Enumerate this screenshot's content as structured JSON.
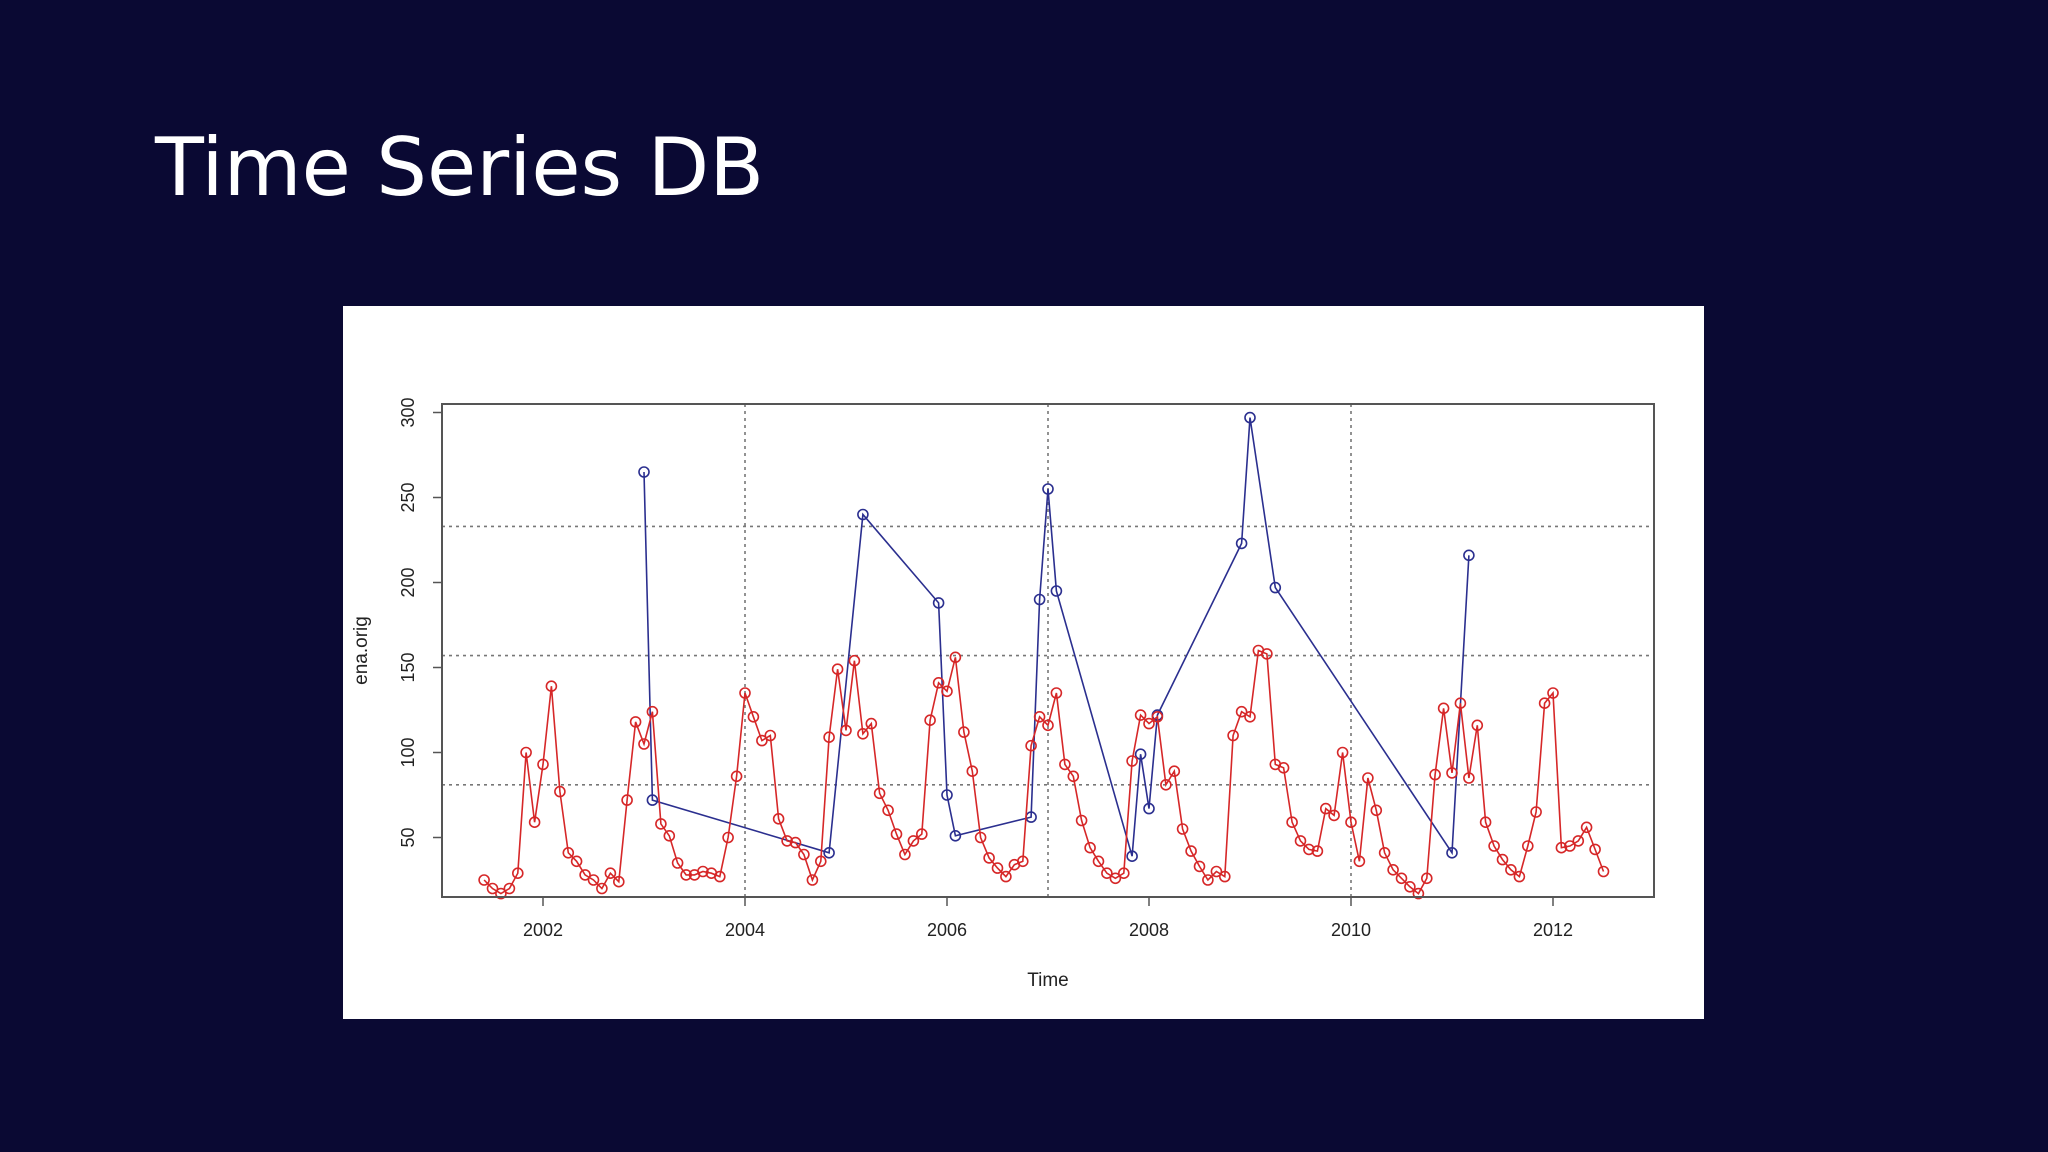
{
  "slide": {
    "title": "Time Series DB"
  },
  "chart_data": {
    "type": "line",
    "xlabel": "Time",
    "ylabel": "ena.orig",
    "xlim": [
      2001.0,
      2013.0
    ],
    "ylim": [
      15,
      305
    ],
    "xticks": [
      2002,
      2004,
      2006,
      2008,
      2010,
      2012
    ],
    "yticks": [
      50,
      100,
      150,
      200,
      250,
      300
    ],
    "vgrid": [
      2004,
      2007,
      2010
    ],
    "hgrid": [
      81,
      157,
      233
    ],
    "grid": "dotted",
    "colors": {
      "series_a": "#2b2f8f",
      "series_b": "#d62728"
    },
    "series": [
      {
        "color": "#2b2f8f",
        "x": [
          2003.0,
          2003.083,
          2004.833,
          2005.167,
          2005.917,
          2006.0,
          2006.083,
          2006.833,
          2006.917,
          2007.0,
          2007.083,
          2007.833,
          2007.917,
          2008.0,
          2008.083,
          2008.917,
          2009.0,
          2009.25,
          2011.0,
          2011.167
        ],
        "y": [
          265,
          72,
          41,
          240,
          188,
          75,
          51,
          62,
          190,
          255,
          195,
          39,
          99,
          67,
          122,
          223,
          297,
          197,
          41,
          216
        ]
      },
      {
        "color": "#d62728",
        "x": [
          2001.417,
          2001.5,
          2001.583,
          2001.667,
          2001.75,
          2001.833,
          2001.917,
          2002.0,
          2002.083,
          2002.167,
          2002.25,
          2002.333,
          2002.417,
          2002.5,
          2002.583,
          2002.667,
          2002.75,
          2002.833,
          2002.917,
          2003.0,
          2003.083,
          2003.167,
          2003.25,
          2003.333,
          2003.417,
          2003.5,
          2003.583,
          2003.667,
          2003.75,
          2003.833,
          2003.917,
          2004.0,
          2004.083,
          2004.167,
          2004.25,
          2004.333,
          2004.417,
          2004.5,
          2004.583,
          2004.667,
          2004.75,
          2004.833,
          2004.917,
          2005.0,
          2005.083,
          2005.167,
          2005.25,
          2005.333,
          2005.417,
          2005.5,
          2005.583,
          2005.667,
          2005.75,
          2005.833,
          2005.917,
          2006.0,
          2006.083,
          2006.167,
          2006.25,
          2006.333,
          2006.417,
          2006.5,
          2006.583,
          2006.667,
          2006.75,
          2006.833,
          2006.917,
          2007.0,
          2007.083,
          2007.167,
          2007.25,
          2007.333,
          2007.417,
          2007.5,
          2007.583,
          2007.667,
          2007.75,
          2007.833,
          2007.917,
          2008.0,
          2008.083,
          2008.167,
          2008.25,
          2008.333,
          2008.417,
          2008.5,
          2008.583,
          2008.667,
          2008.75,
          2008.833,
          2008.917,
          2009.0,
          2009.083,
          2009.167,
          2009.25,
          2009.333,
          2009.417,
          2009.5,
          2009.583,
          2009.667,
          2009.75,
          2009.833,
          2009.917,
          2010.0,
          2010.083,
          2010.167,
          2010.25,
          2010.333,
          2010.417,
          2010.5,
          2010.583,
          2010.667,
          2010.75,
          2010.833,
          2010.917,
          2011.0,
          2011.083,
          2011.167,
          2011.25,
          2011.333,
          2011.417,
          2011.5,
          2011.583,
          2011.667,
          2011.75,
          2011.833,
          2011.917,
          2012.0,
          2012.083,
          2012.167,
          2012.25,
          2012.333,
          2012.417,
          2012.5
        ],
        "y": [
          25,
          20,
          17,
          20,
          29,
          100,
          59,
          93,
          139,
          77,
          41,
          36,
          28,
          25,
          20,
          29,
          24,
          72,
          118,
          105,
          124,
          58,
          51,
          35,
          28,
          28,
          30,
          29,
          27,
          50,
          86,
          135,
          121,
          107,
          110,
          61,
          48,
          47,
          40,
          25,
          36,
          109,
          149,
          113,
          154,
          111,
          117,
          76,
          66,
          52,
          40,
          48,
          52,
          119,
          141,
          136,
          156,
          112,
          89,
          50,
          38,
          32,
          27,
          34,
          36,
          104,
          121,
          116,
          135,
          93,
          86,
          60,
          44,
          36,
          29,
          26,
          29,
          95,
          122,
          117,
          121,
          81,
          89,
          55,
          42,
          33,
          25,
          30,
          27,
          110,
          124,
          121,
          160,
          158,
          93,
          91,
          59,
          48,
          43,
          42,
          67,
          63,
          100,
          59,
          36,
          85,
          66,
          41,
          31,
          26,
          21,
          17,
          26,
          87,
          126,
          88,
          129,
          85,
          116,
          59,
          45,
          37,
          31,
          27,
          45,
          65,
          129,
          135,
          44,
          45,
          48,
          56,
          43,
          30
        ]
      }
    ]
  }
}
